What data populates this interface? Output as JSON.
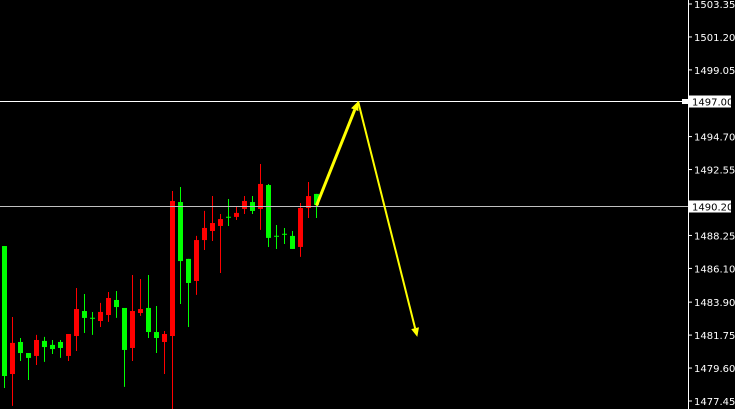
{
  "chart_data": {
    "type": "candlestick",
    "title": "",
    "ylim": [
      1477.45,
      1503.35
    ],
    "y_ticks": [
      "1503.35",
      "1501.20",
      "1499.05",
      "1497.00",
      "1494.70",
      "1492.55",
      "1490.20",
      "1488.25",
      "1486.10",
      "1483.90",
      "1481.75",
      "1479.60",
      "1477.45"
    ],
    "grid": false,
    "colors": {
      "background": "#000000",
      "bull": "#00ff00",
      "bear": "#ff0000",
      "axis": "#ffffff",
      "arrow": "#ffff00",
      "level_line": "#ffffff",
      "price_line": "#c0c0c0"
    },
    "candles": [
      [
        1479.08,
        1487.56,
        1478.3,
        1487.56
      ],
      [
        1481.24,
        1482.93,
        1477.13,
        1479.21
      ],
      [
        1480.58,
        1481.56,
        1480.06,
        1481.3
      ],
      [
        1480.26,
        1480.58,
        1478.82,
        1480.58
      ],
      [
        1481.43,
        1481.76,
        1479.8,
        1480.39
      ],
      [
        1480.97,
        1481.63,
        1480.0,
        1481.37
      ],
      [
        1480.84,
        1481.43,
        1480.52,
        1481.11
      ],
      [
        1480.91,
        1481.43,
        1480.26,
        1481.3
      ],
      [
        1481.82,
        1481.82,
        1480.06,
        1480.39
      ],
      [
        1483.45,
        1484.82,
        1480.71,
        1481.69
      ],
      [
        1482.87,
        1484.43,
        1481.89,
        1483.32
      ],
      [
        1482.87,
        1483.26,
        1481.76,
        1482.88
      ],
      [
        1483.26,
        1483.85,
        1482.28,
        1482.67
      ],
      [
        1484.17,
        1484.56,
        1482.61,
        1483.06
      ],
      [
        1483.58,
        1484.63,
        1482.87,
        1484.04
      ],
      [
        1480.78,
        1483.52,
        1478.37,
        1483.52
      ],
      [
        1483.32,
        1485.67,
        1480.06,
        1480.91
      ],
      [
        1483.45,
        1485.41,
        1483.0,
        1483.19
      ],
      [
        1481.95,
        1485.67,
        1481.56,
        1483.52
      ],
      [
        1481.56,
        1483.65,
        1480.58,
        1481.95
      ],
      [
        1481.82,
        1482.02,
        1479.21,
        1481.3
      ],
      [
        1490.5,
        1491.15,
        1476.93,
        1481.69
      ],
      [
        1486.58,
        1491.41,
        1483.78,
        1490.43
      ],
      [
        1485.15,
        1486.72,
        1482.28,
        1486.72
      ],
      [
        1487.95,
        1488.22,
        1484.37,
        1485.28
      ],
      [
        1488.74,
        1489.85,
        1487.3,
        1487.95
      ],
      [
        1489.06,
        1490.82,
        1487.89,
        1488.54
      ],
      [
        1489.32,
        1489.65,
        1485.8,
        1488.87
      ],
      [
        1489.46,
        1490.63,
        1488.87,
        1489.47
      ],
      [
        1489.72,
        1490.11,
        1489.26,
        1489.46
      ],
      [
        1490.5,
        1490.82,
        1489.65,
        1489.98
      ],
      [
        1489.85,
        1490.82,
        1489.65,
        1490.43
      ],
      [
        1491.61,
        1492.91,
        1488.61,
        1489.98
      ],
      [
        1488.09,
        1491.61,
        1487.5,
        1491.54
      ],
      [
        1488.22,
        1488.93,
        1487.37,
        1488.23
      ],
      [
        1488.35,
        1488.74,
        1487.69,
        1488.36
      ],
      [
        1487.37,
        1488.54,
        1487.37,
        1488.22
      ],
      [
        1490.04,
        1490.37,
        1486.85,
        1487.5
      ],
      [
        1490.82,
        1491.74,
        1489.39,
        1490.04
      ],
      [
        1490.24,
        1490.96,
        1489.39,
        1490.96
      ]
    ],
    "level_line": {
      "price": 1497.0,
      "label": "1497.00"
    },
    "current_price": {
      "price": 1490.2,
      "label": "1490.20"
    },
    "arrows": [
      {
        "from_bar": 39,
        "from_price": 1490.2,
        "to_bar": 44.2,
        "to_price": 1497.0
      },
      {
        "from_bar": 44.2,
        "from_price": 1497.0,
        "to_bar": 51.6,
        "to_price": 1481.63
      }
    ]
  }
}
